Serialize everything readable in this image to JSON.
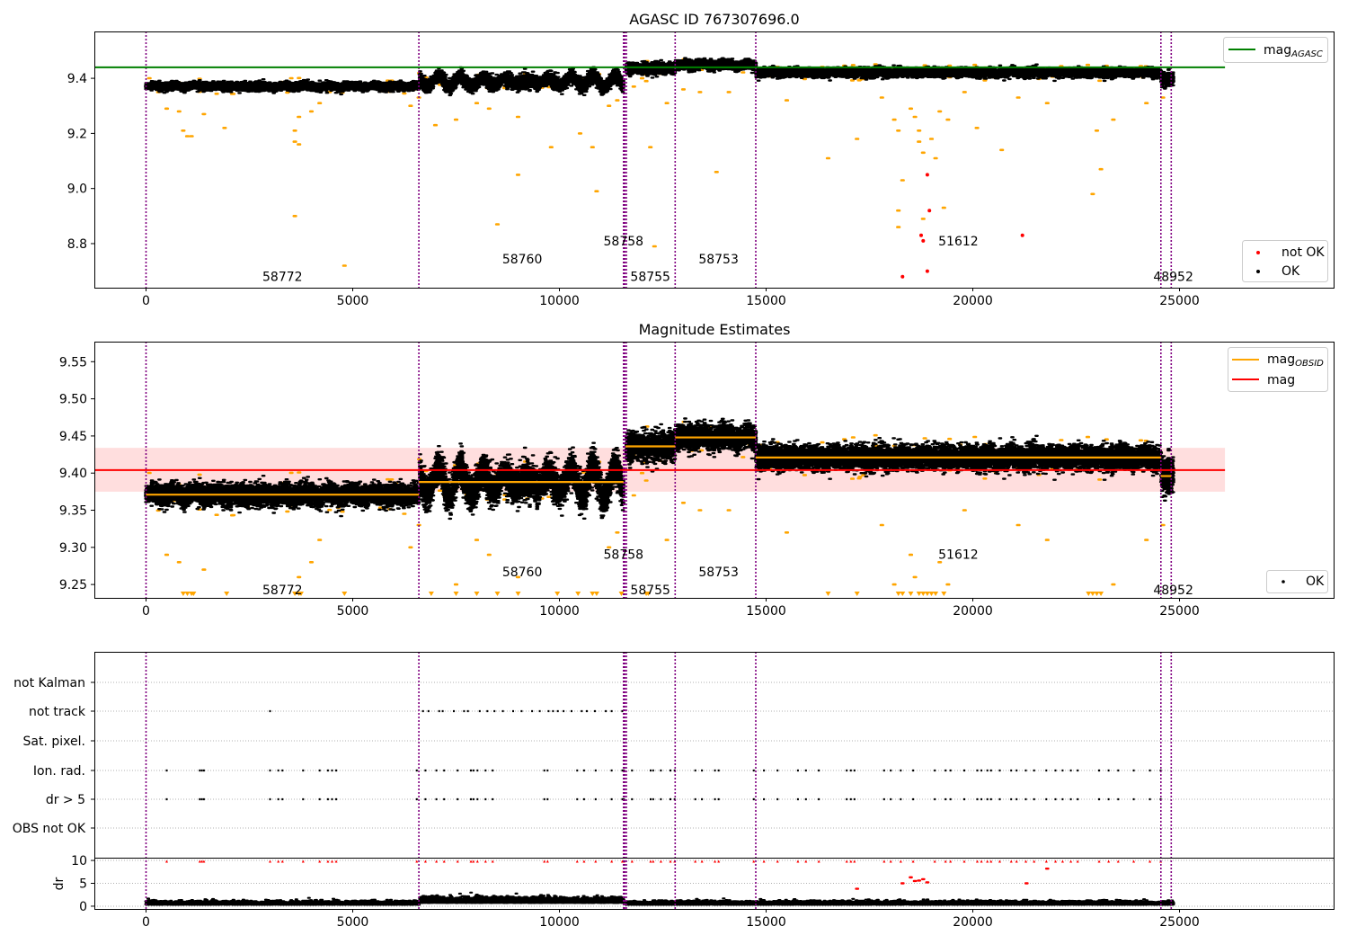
{
  "figure": {
    "title": "AGASC ID 767307696.0"
  },
  "obs_boundaries": [
    0,
    6600,
    11550,
    11580,
    11620,
    12800,
    14750,
    24550,
    24800
  ],
  "panels": [
    {
      "id": "agasc",
      "title": "",
      "xlim": [
        -1250,
        28750
      ],
      "ylim": [
        8.64,
        9.57
      ],
      "xticks": [
        0,
        5000,
        10000,
        15000,
        20000,
        25000
      ],
      "yticks": [
        8.8,
        9.0,
        9.2,
        9.4
      ],
      "ytick_labels": [
        "8.8",
        "9.0",
        "9.2",
        "9.4"
      ],
      "mag_agasc": 9.44,
      "legend_top": {
        "entries": [
          {
            "label": "mag",
            "sub": "AGASC",
            "color": "#008000"
          }
        ]
      },
      "legend_bottom": {
        "entries": [
          {
            "label": "not OK",
            "color": "#ff0000"
          },
          {
            "label": "OK",
            "color": "#000000"
          }
        ]
      },
      "obsid_labels": [
        {
          "text": "58772",
          "x": 3300,
          "y": 8.68
        },
        {
          "text": "58760",
          "x": 9100,
          "y": 8.745
        },
        {
          "text": "58758",
          "x": 11550,
          "y": 8.81
        },
        {
          "text": "58755",
          "x": 12200,
          "y": 8.68
        },
        {
          "text": "58753",
          "x": 13850,
          "y": 8.745
        },
        {
          "text": "51612",
          "x": 19650,
          "y": 8.81
        },
        {
          "text": "48952",
          "x": 24850,
          "y": 8.68
        }
      ]
    },
    {
      "id": "estimates",
      "title": "Magnitude Estimates",
      "xlim": [
        -1250,
        28750
      ],
      "ylim": [
        9.232,
        9.577
      ],
      "xticks": [
        0,
        5000,
        10000,
        15000,
        20000,
        25000
      ],
      "yticks": [
        9.25,
        9.3,
        9.35,
        9.4,
        9.45,
        9.5,
        9.55
      ],
      "ytick_labels": [
        "9.25",
        "9.30",
        "9.35",
        "9.40",
        "9.45",
        "9.50",
        "9.55"
      ],
      "mag": 9.404,
      "mag_band": [
        9.375,
        9.434
      ],
      "mag_line_extent": [
        -1250,
        26100
      ],
      "obsid_mags": [
        {
          "x0": 0,
          "x1": 6600,
          "mag": 9.371
        },
        {
          "x0": 6600,
          "x1": 11550,
          "mag": 9.388
        },
        {
          "x0": 11600,
          "x1": 12800,
          "mag": 9.436
        },
        {
          "x0": 12800,
          "x1": 14750,
          "mag": 9.448
        },
        {
          "x0": 14750,
          "x1": 24550,
          "mag": 9.421
        },
        {
          "x0": 24550,
          "x1": 24800,
          "mag": 9.396
        }
      ],
      "legend_top": {
        "entries": [
          {
            "label": "mag",
            "sub": "OBSID",
            "color": "#ffa500"
          },
          {
            "label": "mag",
            "color": "#ff0000"
          }
        ]
      },
      "legend_bottom": {
        "entries": [
          {
            "label": "OK",
            "color": "#000000"
          }
        ]
      },
      "obsid_labels": [
        {
          "text": "58772",
          "x": 3300,
          "y": 9.243
        },
        {
          "text": "58760",
          "x": 9100,
          "y": 9.267
        },
        {
          "text": "58758",
          "x": 11550,
          "y": 9.291
        },
        {
          "text": "58755",
          "x": 12200,
          "y": 9.243
        },
        {
          "text": "58753",
          "x": 13850,
          "y": 9.267
        },
        {
          "text": "51612",
          "x": 19650,
          "y": 9.291
        },
        {
          "text": "48952",
          "x": 24850,
          "y": 9.243
        }
      ]
    },
    {
      "id": "flags",
      "xlim": [
        -1250,
        28750
      ],
      "categories": [
        "not Kalman",
        "not track",
        "Sat. pixel.",
        "Ion. rad.",
        "dr > 5",
        "OBS not OK"
      ]
    },
    {
      "id": "dr",
      "ylabel": "dr",
      "ylim": [
        -0.6,
        10.6
      ],
      "yticks": [
        0,
        5,
        10
      ],
      "xticks": [
        0,
        5000,
        10000,
        15000,
        20000,
        25000
      ]
    }
  ],
  "chart_data": [
    {
      "type": "scatter",
      "title": "AGASC ID 767307696.0",
      "xlabel": "",
      "ylabel": "",
      "xlim": [
        -1250,
        28750
      ],
      "ylim": [
        8.64,
        9.57
      ],
      "series": [
        {
          "name": "OK",
          "color": "#000000",
          "x_range": [
            0,
            24850
          ],
          "segment_mean_mags": [
            9.371,
            9.388,
            9.436,
            9.448,
            9.421,
            9.396
          ]
        },
        {
          "name": "not OK",
          "color": "#ff0000",
          "points": [
            {
              "x": 18750,
              "y": 8.83
            },
            {
              "x": 18800,
              "y": 8.81
            },
            {
              "x": 18900,
              "y": 8.7
            },
            {
              "x": 18300,
              "y": 8.68
            },
            {
              "x": 18900,
              "y": 9.05
            },
            {
              "x": 18950,
              "y": 8.92
            },
            {
              "x": 21200,
              "y": 8.83
            }
          ]
        },
        {
          "name": "mag_AGASC",
          "color": "#008000",
          "y": 9.44
        }
      ]
    },
    {
      "type": "scatter",
      "title": "Magnitude Estimates",
      "xlabel": "",
      "ylabel": "",
      "xlim": [
        -1250,
        28750
      ],
      "ylim": [
        9.232,
        9.577
      ],
      "series": [
        {
          "name": "OK",
          "color": "#000000",
          "x_range": [
            0,
            24850
          ]
        },
        {
          "name": "mag_OBSID",
          "color": "#ffa500",
          "segments": [
            {
              "x0": 0,
              "x1": 6600,
              "y": 9.371
            },
            {
              "x0": 6600,
              "x1": 11550,
              "y": 9.388
            },
            {
              "x0": 11600,
              "x1": 12800,
              "y": 9.436
            },
            {
              "x0": 12800,
              "x1": 14750,
              "y": 9.448
            },
            {
              "x0": 14750,
              "x1": 24550,
              "y": 9.421
            },
            {
              "x0": 24550,
              "x1": 24800,
              "y": 9.396
            }
          ]
        },
        {
          "name": "mag",
          "color": "#ff0000",
          "y": 9.404,
          "band": [
            9.375,
            9.434
          ]
        }
      ]
    },
    {
      "type": "scatter",
      "title": "",
      "xlabel": "",
      "ylabel": "dr",
      "ylim": [
        -0.6,
        10.6
      ],
      "categories": [
        "not Kalman",
        "not track",
        "Sat. pixel.",
        "Ion. rad.",
        "dr > 5",
        "OBS not OK"
      ]
    }
  ]
}
